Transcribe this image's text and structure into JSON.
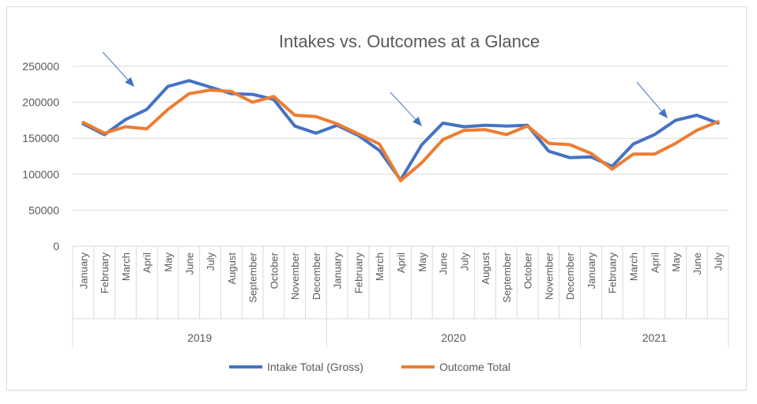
{
  "chart_data": {
    "type": "line",
    "title": "Intakes vs. Outcomes at a Glance",
    "ylim": [
      0,
      250000
    ],
    "yticks": [
      0,
      50000,
      100000,
      150000,
      200000,
      250000
    ],
    "grid": true,
    "legend_position": "bottom",
    "groups": [
      {
        "label": "2019",
        "months": [
          "January",
          "February",
          "March",
          "April",
          "May",
          "June",
          "July",
          "August",
          "September",
          "October",
          "November",
          "December"
        ]
      },
      {
        "label": "2020",
        "months": [
          "January",
          "February",
          "March",
          "April",
          "May",
          "June",
          "July",
          "August",
          "September",
          "October",
          "November",
          "December"
        ]
      },
      {
        "label": "2021",
        "months": [
          "January",
          "February",
          "March",
          "April",
          "May",
          "June",
          "July"
        ]
      }
    ],
    "series": [
      {
        "name": "Intake Total (Gross)",
        "color": "#4472C4",
        "values": [
          170000,
          155000,
          176000,
          190000,
          222000,
          230000,
          221000,
          212000,
          211000,
          204000,
          167000,
          157000,
          168000,
          154000,
          133000,
          92000,
          141000,
          171000,
          166000,
          168000,
          167000,
          168000,
          132000,
          123000,
          124000,
          111000,
          142000,
          155000,
          175000,
          182000,
          171000
        ]
      },
      {
        "name": "Outcome Total",
        "color": "#ED7D31",
        "values": [
          172000,
          157000,
          166000,
          163000,
          190000,
          212000,
          217000,
          215000,
          200000,
          208000,
          182000,
          180000,
          170000,
          156000,
          142000,
          91000,
          116000,
          148000,
          161000,
          162000,
          155000,
          167000,
          143000,
          141000,
          129000,
          107000,
          128000,
          128000,
          143000,
          161000,
          173000
        ]
      }
    ],
    "annotations": [
      "arrow",
      "arrow",
      "arrow"
    ]
  }
}
